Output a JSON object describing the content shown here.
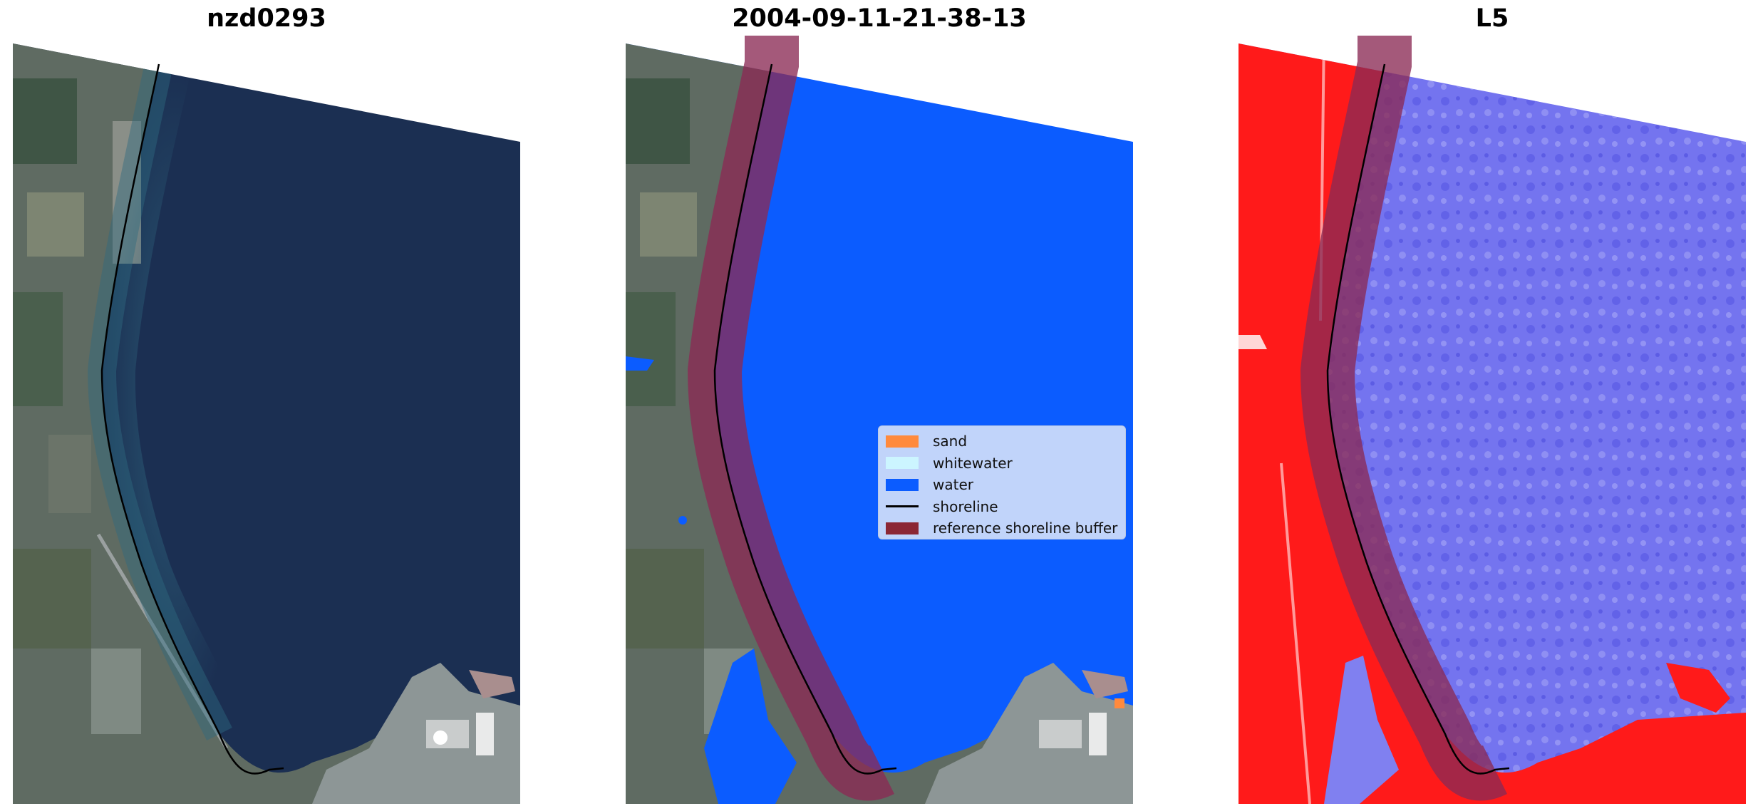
{
  "titles": {
    "left": "nzd0293",
    "center": "2004-09-11-21-38-13",
    "right": "L5"
  },
  "legend": {
    "items": [
      {
        "label": "sand",
        "color": "#ff8a3d",
        "kind": "patch"
      },
      {
        "label": "whitewater",
        "color": "#ccf5ff",
        "kind": "patch"
      },
      {
        "label": "water",
        "color": "#0b5cff",
        "kind": "patch"
      },
      {
        "label": "shoreline",
        "color": "#000000",
        "kind": "line"
      },
      {
        "label": "reference shoreline buffer",
        "color": "#8b2635",
        "kind": "patch"
      }
    ]
  },
  "colors": {
    "ocean_rgb": "#1a2f52",
    "water_class": "#0b5cff",
    "land_rgb": "#5d6a5e",
    "buffer": "#8b2a55",
    "index_land": "#ff1a1a",
    "index_water": "#6f6ff0"
  }
}
